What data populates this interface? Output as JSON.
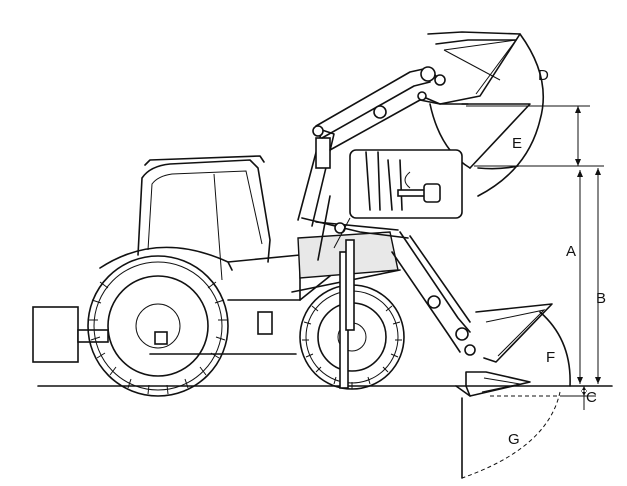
{
  "labels": {
    "A": "A",
    "B": "B",
    "C": "C",
    "D": "D",
    "E": "E",
    "F": "F",
    "G": "G"
  },
  "colors": {
    "line": "#111111",
    "background": "#ffffff",
    "hood_shade": "#e8e8e8"
  }
}
